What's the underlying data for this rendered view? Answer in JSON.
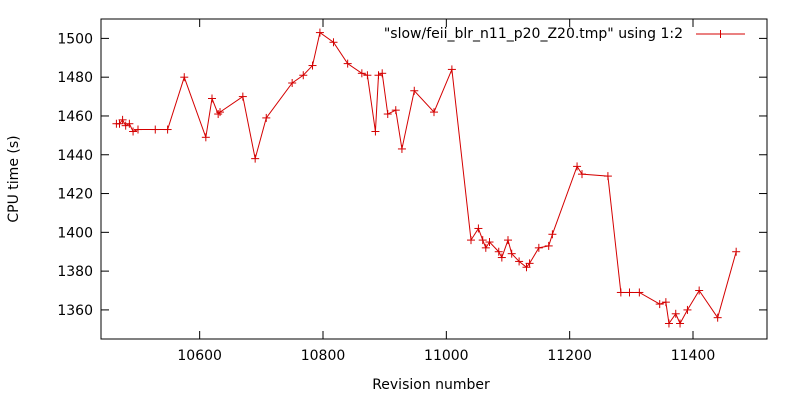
{
  "chart_data": {
    "type": "line",
    "title": "",
    "xlabel": "Revision number",
    "ylabel": "CPU time (s)",
    "xlim": [
      10440,
      11520
    ],
    "ylim": [
      1345,
      1510
    ],
    "xticks": [
      10600,
      10800,
      11000,
      11200,
      11400
    ],
    "yticks": [
      1360,
      1380,
      1400,
      1420,
      1440,
      1460,
      1480,
      1500
    ],
    "grid": false,
    "legend_position": "top-right",
    "series": [
      {
        "name": "\"slow/feii_blr_n11_p20_Z20.tmp\" using 1:2",
        "color": "#d40000",
        "marker": "plus",
        "x": [
          10465,
          10470,
          10475,
          10480,
          10486,
          10492,
          10500,
          10528,
          10548,
          10575,
          10610,
          10620,
          10630,
          10633,
          10670,
          10690,
          10708,
          10750,
          10768,
          10783,
          10795,
          10817,
          10840,
          10863,
          10872,
          10885,
          10890,
          10896,
          10905,
          10918,
          10928,
          10948,
          10980,
          11009,
          11040,
          11052,
          11059,
          11064,
          11070,
          11085,
          11090,
          11100,
          11106,
          11118,
          11130,
          11135,
          11150,
          11166,
          11172,
          11212,
          11220,
          11262,
          11283,
          11297,
          11313,
          11346,
          11356,
          11361,
          11372,
          11379,
          11391,
          11410,
          11440,
          11470
        ],
        "y": [
          1456,
          1456,
          1458,
          1455,
          1456,
          1452,
          1453,
          1453,
          1453,
          1480,
          1449,
          1469,
          1461,
          1462,
          1470,
          1438,
          1459,
          1477,
          1481,
          1486,
          1503,
          1498,
          1487,
          1482,
          1481,
          1452,
          1481,
          1482,
          1461,
          1463,
          1443,
          1473,
          1462,
          1484,
          1396,
          1402,
          1396,
          1392,
          1395,
          1390,
          1387,
          1396,
          1389,
          1385,
          1382,
          1384,
          1392,
          1393,
          1399,
          1434,
          1430,
          1429,
          1369,
          1369,
          1369,
          1363,
          1364,
          1353,
          1358,
          1353,
          1360,
          1370,
          1356,
          1390
        ]
      }
    ]
  }
}
